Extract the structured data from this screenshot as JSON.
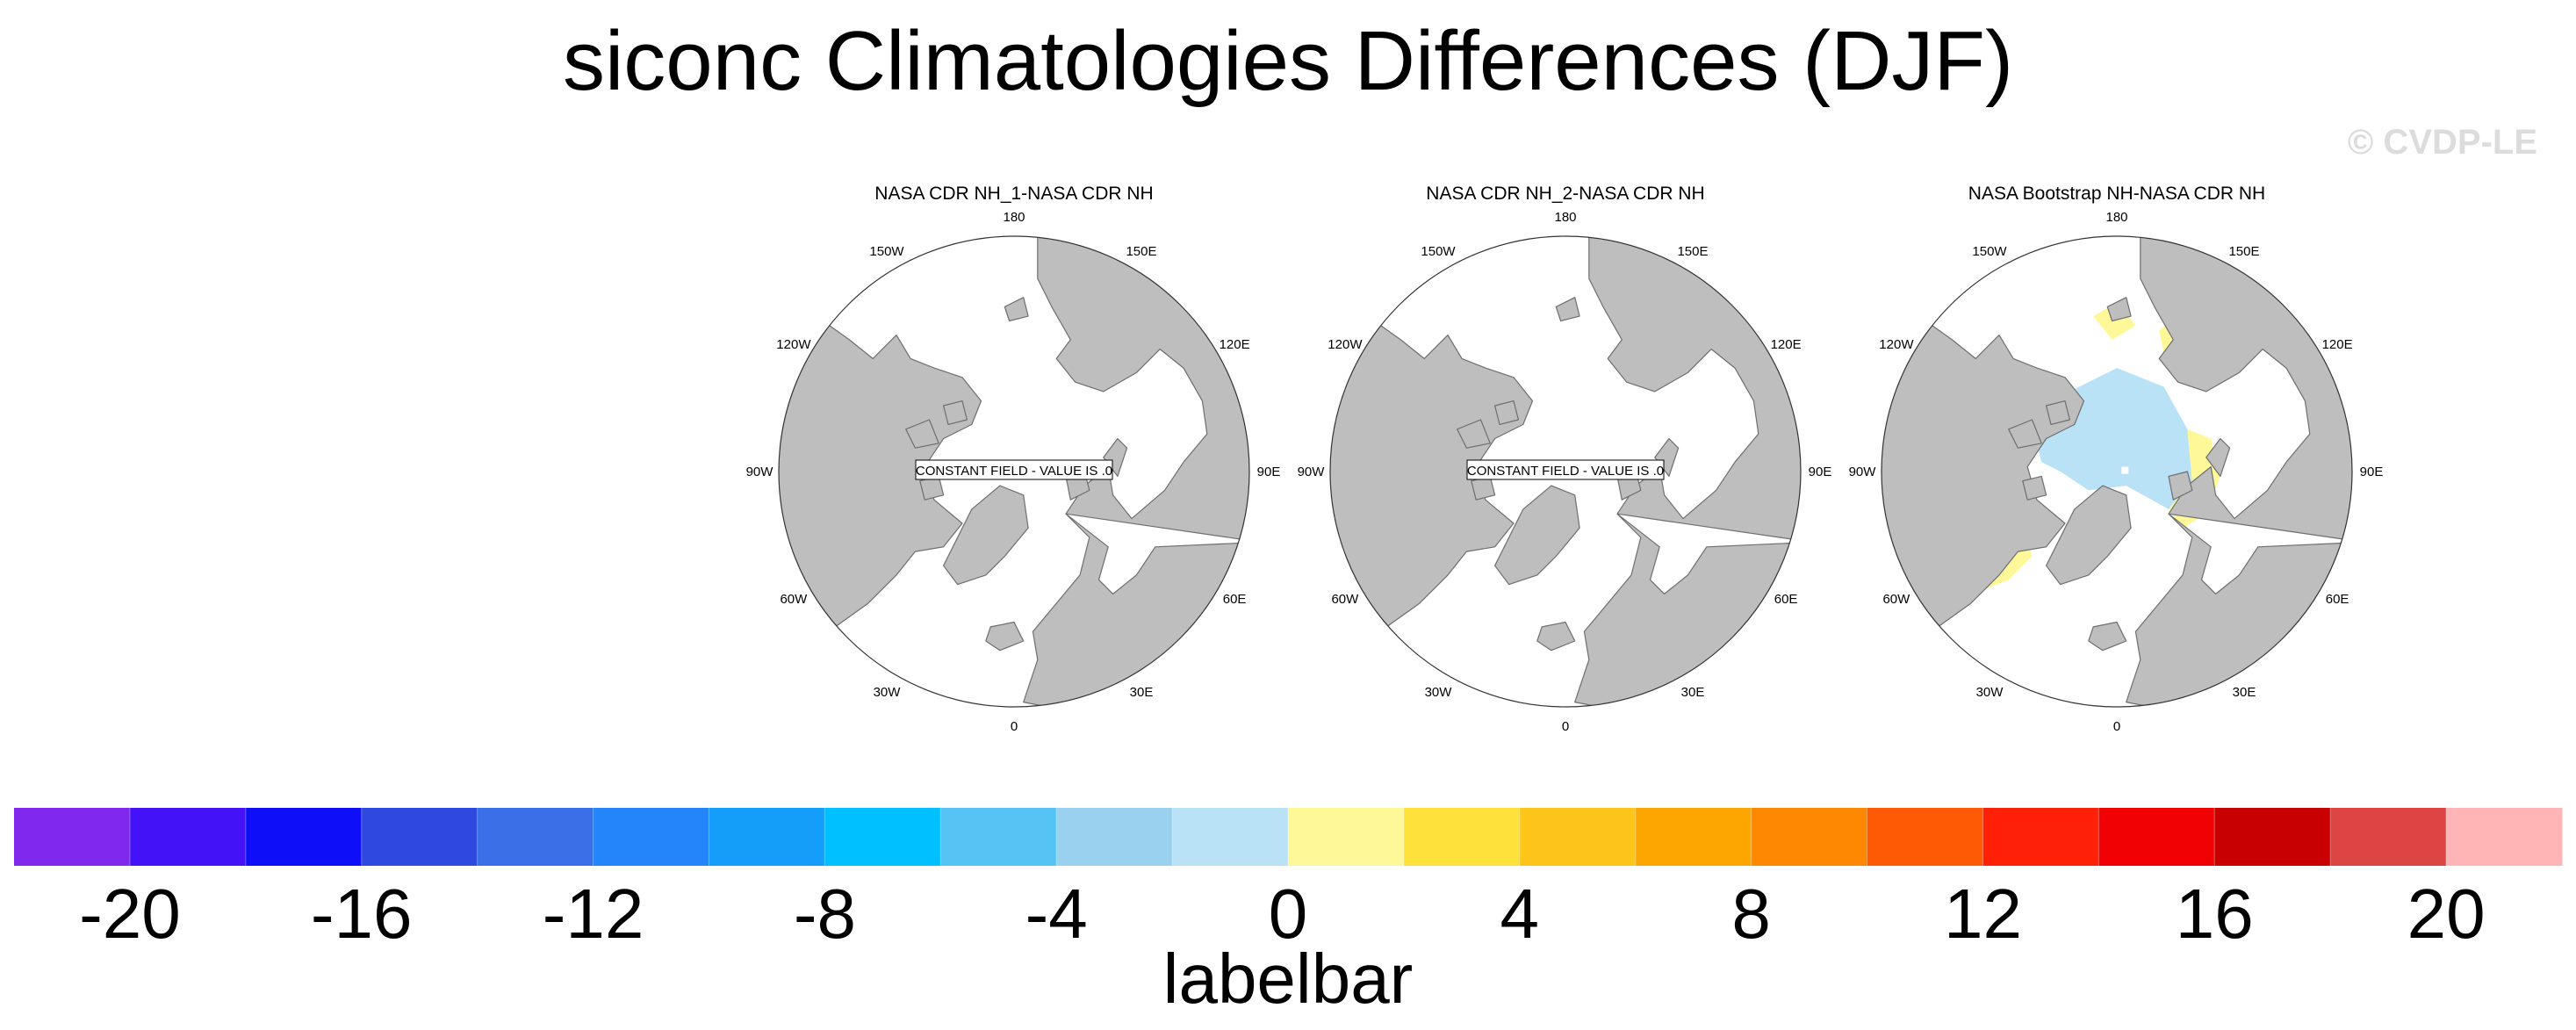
{
  "title": "siconc Climatologies Differences (DJF)",
  "watermark": "© CVDP-LE",
  "chart_data": {
    "type": "heatmap",
    "projection": "north-polar-stereographic",
    "title": "siconc Climatologies Differences (DJF)",
    "panels": [
      {
        "title": "NASA CDR NH_1-NASA CDR NH",
        "constant_field_text": "CONSTANT FIELD - VALUE IS .0",
        "field": "constant"
      },
      {
        "title": "NASA CDR NH_2-NASA CDR NH",
        "constant_field_text": "CONSTANT FIELD - VALUE IS .0",
        "field": "constant"
      },
      {
        "title": "NASA Bootstrap NH-NASA CDR NH",
        "constant_field_text": null,
        "field": "varying",
        "dominant_values": {
          "central_arctic_ocean": -1,
          "marginal_ice_zones": 1
        }
      }
    ],
    "longitude_labels": [
      "180",
      "150E",
      "120E",
      "90E",
      "60E",
      "30E",
      "0",
      "30W",
      "60W",
      "90W",
      "120W",
      "150W"
    ],
    "colorbar": {
      "title": "labelbar",
      "boundaries": [
        -20,
        -18,
        -16,
        -14,
        -12,
        -10,
        -8,
        -6,
        -4,
        -2,
        0,
        2,
        4,
        6,
        8,
        10,
        12,
        14,
        16,
        18,
        20
      ],
      "tick_labels": [
        "-20",
        "-16",
        "-12",
        "-8",
        "-4",
        "0",
        "4",
        "8",
        "12",
        "16",
        "20"
      ],
      "colors": [
        "#8128ef",
        "#4312f7",
        "#0e0ef9",
        "#2e48e0",
        "#3b6fe8",
        "#2484f9",
        "#149ef9",
        "#00c0ff",
        "#55c4f4",
        "#99d1ee",
        "#b9e2f7",
        "#fff899",
        "#ffe13c",
        "#fdc41a",
        "#fda602",
        "#fe8801",
        "#fe5905",
        "#ff2008",
        "#f10004",
        "#c80001",
        "#dd4545",
        "#ffb5b5"
      ]
    },
    "land_color": "#bebebe",
    "coast_color": "#6e6e6e"
  }
}
